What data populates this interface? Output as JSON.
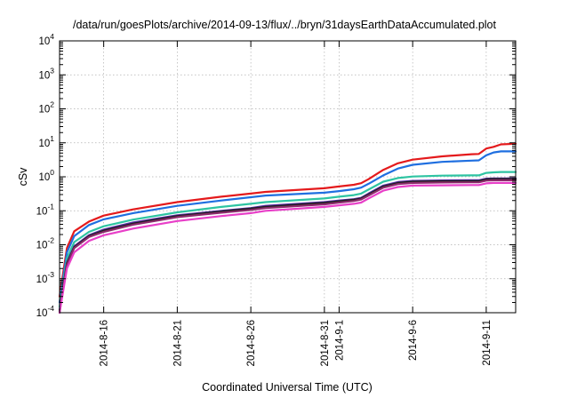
{
  "chart_data": {
    "type": "line",
    "title": "/data/run/goesPlots/archive/2014-09-13/flux/../bryn/31daysEarthDataAccumulated.plot",
    "xlabel": "Coordinated Universal Time (UTC)",
    "ylabel": "cSv",
    "y_scale": "log",
    "ylim": [
      0.0001,
      10000
    ],
    "xlim": [
      "2014-08-13",
      "2014-09-13"
    ],
    "grid": true,
    "legend": "none",
    "y_ticks": [
      {
        "value": 0.0001,
        "base": "10",
        "exp": "-4"
      },
      {
        "value": 0.001,
        "base": "10",
        "exp": "-3"
      },
      {
        "value": 0.01,
        "base": "10",
        "exp": "-2"
      },
      {
        "value": 0.1,
        "base": "10",
        "exp": "-1"
      },
      {
        "value": 1,
        "base": "10",
        "exp": "0"
      },
      {
        "value": 10,
        "base": "10",
        "exp": "1"
      },
      {
        "value": 100,
        "base": "10",
        "exp": "2"
      },
      {
        "value": 1000,
        "base": "10",
        "exp": "3"
      },
      {
        "value": 10000,
        "base": "10",
        "exp": "4"
      }
    ],
    "x_ticks": [
      {
        "date": "2014-08-16",
        "label": "2014-8-16"
      },
      {
        "date": "2014-08-21",
        "label": "2014-8-21"
      },
      {
        "date": "2014-08-26",
        "label": "2014-8-26"
      },
      {
        "date": "2014-08-31",
        "label": "2014-8-31"
      },
      {
        "date": "2014-09-01",
        "label": "2014-9-1"
      },
      {
        "date": "2014-09-06",
        "label": "2014-9-6"
      },
      {
        "date": "2014-09-11",
        "label": "2014-9-11"
      }
    ],
    "x": [
      "2014-08-13T00:00",
      "2014-08-13T12:00",
      "2014-08-14T00:00",
      "2014-08-15T00:00",
      "2014-08-16T00:00",
      "2014-08-18T00:00",
      "2014-08-21T00:00",
      "2014-08-24T00:00",
      "2014-08-26T00:00",
      "2014-08-27T00:00",
      "2014-08-31T00:00",
      "2014-09-01T00:00",
      "2014-09-02T00:00",
      "2014-09-02T12:00",
      "2014-09-03T00:00",
      "2014-09-04T00:00",
      "2014-09-05T00:00",
      "2014-09-06T00:00",
      "2014-09-08T00:00",
      "2014-09-10T00:00",
      "2014-09-10T12:00",
      "2014-09-11T00:00",
      "2014-09-11T12:00",
      "2014-09-12T00:00",
      "2014-09-13T00:00"
    ],
    "series": [
      {
        "color": "#e41a1c",
        "values": [
          0.0003,
          0.008,
          0.025,
          0.048,
          0.072,
          0.11,
          0.18,
          0.26,
          0.32,
          0.36,
          0.46,
          0.52,
          0.58,
          0.65,
          0.85,
          1.6,
          2.5,
          3.2,
          4.0,
          4.6,
          4.7,
          6.8,
          7.6,
          9.0,
          9.4
        ]
      },
      {
        "color": "#1f6fe0",
        "values": [
          0.0002,
          0.006,
          0.018,
          0.038,
          0.056,
          0.085,
          0.14,
          0.2,
          0.25,
          0.28,
          0.34,
          0.38,
          0.43,
          0.48,
          0.62,
          1.1,
          1.75,
          2.25,
          2.75,
          3.0,
          3.05,
          4.3,
          5.2,
          5.6,
          5.6
        ]
      },
      {
        "color": "#2ec4a2",
        "values": [
          0.00015,
          0.004,
          0.012,
          0.024,
          0.035,
          0.055,
          0.09,
          0.13,
          0.16,
          0.18,
          0.23,
          0.26,
          0.29,
          0.32,
          0.42,
          0.72,
          0.92,
          1.02,
          1.08,
          1.1,
          1.1,
          1.3,
          1.35,
          1.38,
          1.38
        ]
      },
      {
        "color": "#5b2aa8",
        "values": [
          0.00012,
          0.003,
          0.009,
          0.019,
          0.028,
          0.045,
          0.074,
          0.1,
          0.12,
          0.14,
          0.18,
          0.2,
          0.22,
          0.24,
          0.32,
          0.55,
          0.7,
          0.76,
          0.78,
          0.79,
          0.79,
          0.88,
          0.9,
          0.9,
          0.9
        ]
      },
      {
        "color": "#202020",
        "values": [
          0.00011,
          0.0028,
          0.0085,
          0.018,
          0.026,
          0.042,
          0.07,
          0.095,
          0.115,
          0.13,
          0.17,
          0.19,
          0.21,
          0.23,
          0.3,
          0.52,
          0.66,
          0.72,
          0.74,
          0.75,
          0.75,
          0.84,
          0.86,
          0.86,
          0.86
        ]
      },
      {
        "color": "#8a2a6a",
        "values": [
          0.0001,
          0.0026,
          0.008,
          0.017,
          0.024,
          0.039,
          0.065,
          0.088,
          0.106,
          0.12,
          0.155,
          0.175,
          0.195,
          0.215,
          0.28,
          0.48,
          0.61,
          0.66,
          0.68,
          0.69,
          0.69,
          0.77,
          0.79,
          0.79,
          0.79
        ]
      },
      {
        "color": "#e83fc8",
        "values": [
          0.0001,
          0.002,
          0.006,
          0.013,
          0.019,
          0.03,
          0.05,
          0.07,
          0.085,
          0.1,
          0.13,
          0.145,
          0.16,
          0.175,
          0.23,
          0.39,
          0.5,
          0.55,
          0.56,
          0.57,
          0.57,
          0.64,
          0.66,
          0.66,
          0.66
        ]
      }
    ]
  }
}
